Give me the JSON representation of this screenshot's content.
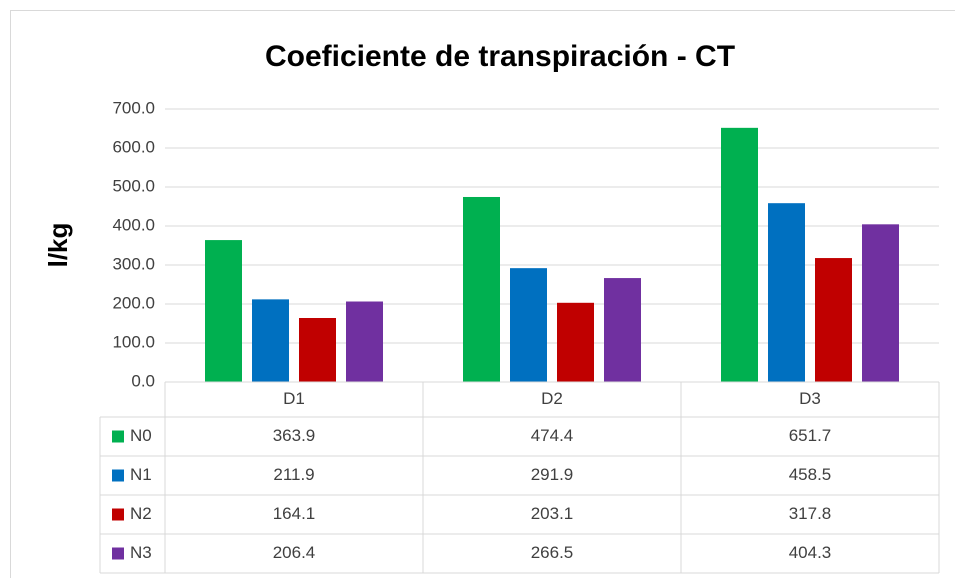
{
  "chart_data": {
    "type": "bar",
    "title": "Coeficiente de transpiración - CT",
    "y_label": "l/kg",
    "categories": [
      "D1",
      "D2",
      "D3"
    ],
    "series": [
      {
        "name": "N0",
        "color": "#00b050",
        "values": [
          363.9,
          474.4,
          651.7
        ]
      },
      {
        "name": "N1",
        "color": "#0070c0",
        "values": [
          211.9,
          291.9,
          458.5
        ]
      },
      {
        "name": "N2",
        "color": "#c00000",
        "values": [
          164.1,
          203.1,
          317.8
        ]
      },
      {
        "name": "N3",
        "color": "#7030a0",
        "values": [
          206.4,
          266.5,
          404.3
        ]
      }
    ],
    "ylim": [
      0,
      700
    ],
    "yticks": [
      {
        "value": 0,
        "label": "0.0"
      },
      {
        "value": 100,
        "label": "100.0"
      },
      {
        "value": 200,
        "label": "200.0"
      },
      {
        "value": 300,
        "label": "300.0"
      },
      {
        "value": 400,
        "label": "400.0"
      },
      {
        "value": 500,
        "label": "500.0"
      },
      {
        "value": 600,
        "label": "600.0"
      },
      {
        "value": 700,
        "label": "700.0"
      }
    ],
    "grid": true,
    "data_table": true
  }
}
